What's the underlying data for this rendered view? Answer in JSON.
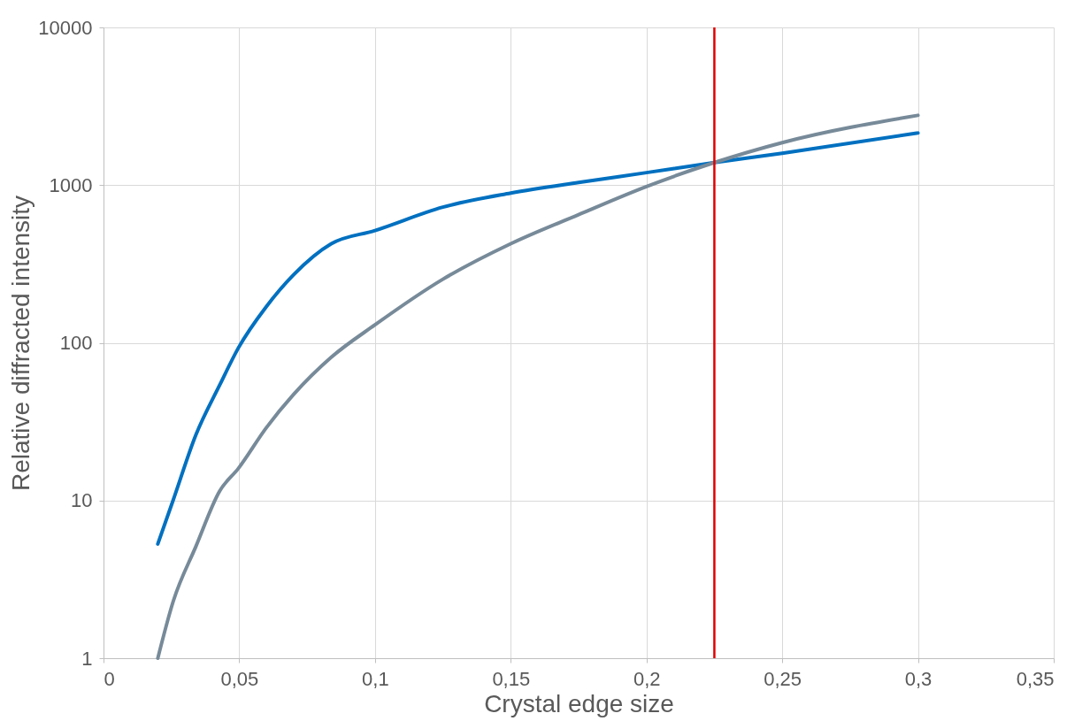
{
  "chart_data": {
    "type": "line",
    "xlabel": "Crystal edge size",
    "ylabel": "Relative diffracted intensity",
    "x": [
      0.02,
      0.0257,
      0.034,
      0.0428,
      0.0497,
      0.06,
      0.07,
      0.0839,
      0.1,
      0.125,
      0.15,
      0.175,
      0.2,
      0.225,
      0.25,
      0.3
    ],
    "series": [
      {
        "color": "#0070c0",
        "values": [
          5.3,
          10.1,
          26,
          54,
          93,
          170,
          270,
          425,
          515,
          725,
          890,
          1040,
          1200,
          1390,
          1590,
          2140
        ]
      },
      {
        "color": "#778a99",
        "values": [
          1,
          2.3,
          5.1,
          11.5,
          16,
          29,
          47,
          81,
          130,
          253,
          425,
          650,
          980,
          1390,
          1860,
          2770
        ]
      }
    ],
    "xlim": [
      0,
      0.35
    ],
    "xticks": [
      0,
      {
        "value": 0.05,
        "label": "0,05"
      },
      {
        "value": 0.1,
        "label": "0,1"
      },
      {
        "value": 0.15,
        "label": "0,15"
      },
      {
        "value": 0.2,
        "label": "0,2"
      },
      {
        "value": 0.25,
        "label": "0,25"
      },
      {
        "value": 0.3,
        "label": "0,3"
      },
      {
        "value": 0.35,
        "label": "0,35"
      }
    ],
    "ylim": [
      1,
      10000
    ],
    "yticks": [
      1,
      10,
      100,
      1000,
      10000
    ],
    "log": true,
    "grid": true,
    "marker": "none",
    "line_style": "solid",
    "ref_lines": [
      {
        "axis": "x",
        "value": 0.225,
        "color": "#e00000"
      }
    ]
  }
}
